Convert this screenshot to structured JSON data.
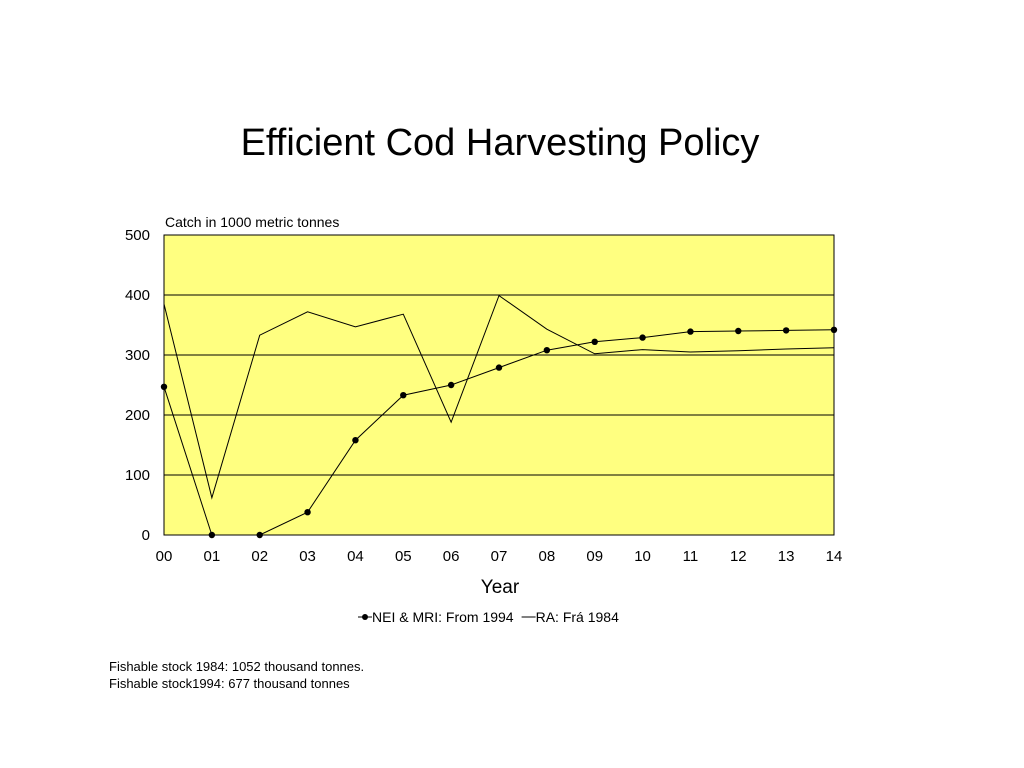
{
  "title": "Efficient Cod Harvesting Policy",
  "chart_data": {
    "type": "line",
    "title": "Efficient Cod Harvesting Policy",
    "ylabel": "Catch in 1000 metric tonnes",
    "xlabel": "Year",
    "ylim": [
      0,
      500
    ],
    "yticks": [
      0,
      100,
      200,
      300,
      400,
      500
    ],
    "categories": [
      "00",
      "01",
      "02",
      "03",
      "04",
      "05",
      "06",
      "07",
      "08",
      "09",
      "10",
      "11",
      "12",
      "13",
      "14"
    ],
    "grid": true,
    "plot_background": "#ffff80",
    "series": [
      {
        "name": "NEI & MRI: From 1994",
        "marker": "circle",
        "values": [
          247,
          0,
          0,
          38,
          158,
          233,
          250,
          279,
          308,
          322,
          329,
          339,
          340,
          341,
          342
        ]
      },
      {
        "name": "RA: Frá 1984",
        "marker": "none",
        "values": [
          385,
          62,
          333,
          372,
          347,
          368,
          188,
          399,
          343,
          302,
          309,
          305,
          307,
          310,
          312
        ]
      }
    ]
  },
  "notes": {
    "line1": "Fishable stock 1984:  1052 thousand tonnes.",
    "line2": "Fishable stock1994:   677 thousand tonnes"
  }
}
